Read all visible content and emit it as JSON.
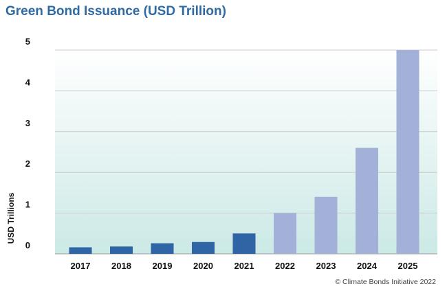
{
  "chart_data": {
    "type": "bar",
    "title": "Green Bond Issuance (USD Trillion)",
    "ylabel": "USD Trillions",
    "xlabel": "",
    "categories": [
      "2017",
      "2018",
      "2019",
      "2020",
      "2021",
      "2022",
      "2023",
      "2024",
      "2025"
    ],
    "values": [
      0.16,
      0.18,
      0.26,
      0.29,
      0.5,
      1.0,
      1.4,
      2.6,
      5.0
    ],
    "bar_kind": [
      "actual",
      "actual",
      "actual",
      "actual",
      "actual",
      "forecast",
      "forecast",
      "forecast",
      "forecast"
    ],
    "ylim": [
      0,
      5
    ],
    "yticks": [
      "0",
      "1",
      "2",
      "3",
      "4",
      "5"
    ],
    "grid": true,
    "colors": {
      "actual": "#2f64a5",
      "forecast": "#a3b0d7",
      "background_top": "#ffffff",
      "background_bottom": "#cbe9e6",
      "grid": "#c9c9c9"
    },
    "source": "© Climate Bonds Initiative 2022"
  }
}
